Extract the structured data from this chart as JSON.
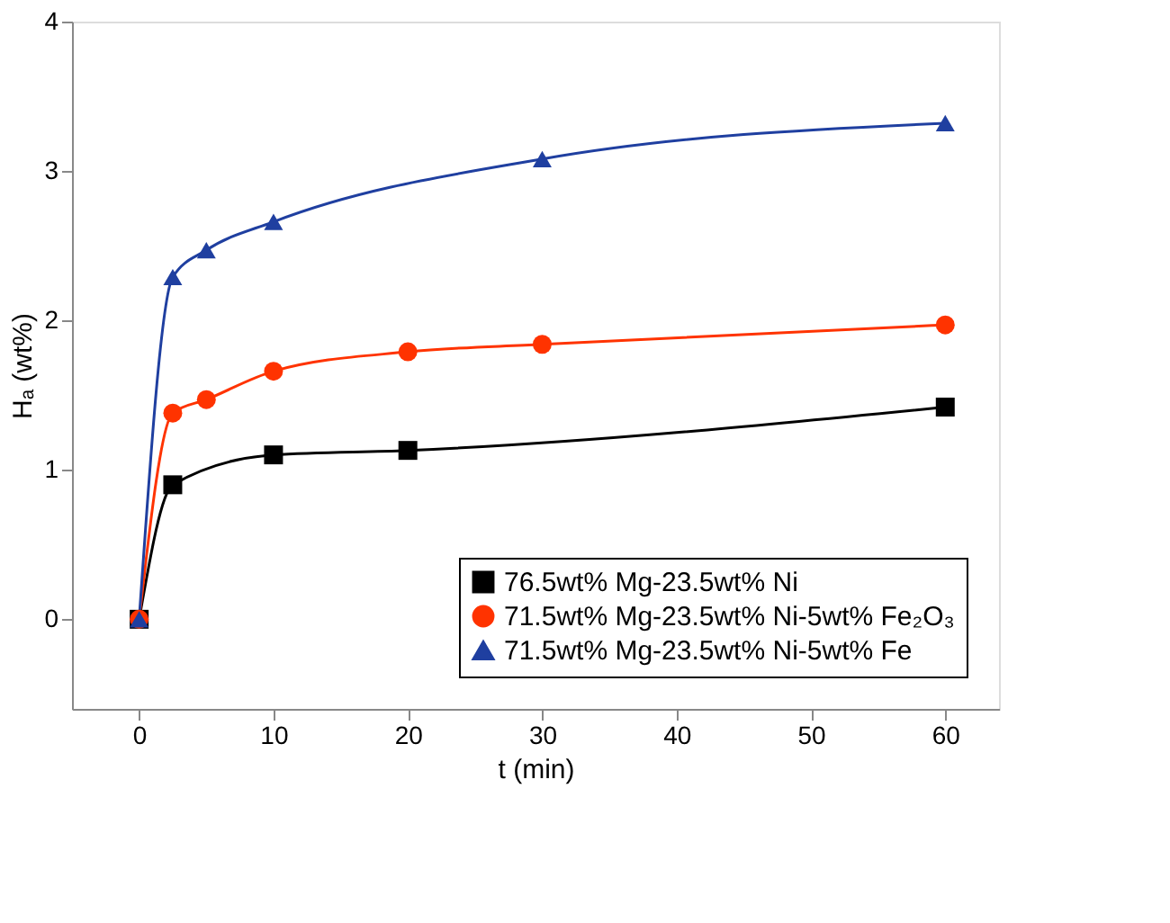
{
  "chart_data": {
    "type": "line",
    "xlabel": "t (min)",
    "ylabel": "Hₐ (wt%)",
    "xlim": [
      -5,
      64
    ],
    "ylim": [
      -0.6,
      4
    ],
    "xticks": [
      0,
      10,
      20,
      30,
      40,
      50,
      60
    ],
    "yticks": [
      0,
      1,
      2,
      3,
      4
    ],
    "grid": false,
    "legend": "bottom right",
    "line_style": "solid",
    "series": [
      {
        "name": "76.5wt% Mg-23.5wt% Ni",
        "color": "#000000",
        "marker": "square",
        "x": [
          0,
          2.5,
          10,
          20,
          60
        ],
        "values": [
          0,
          0.9,
          1.1,
          1.13,
          1.42
        ]
      },
      {
        "name": "71.5wt% Mg-23.5wt% Ni-5wt% Fe₂O₃",
        "color": "#ff3300",
        "marker": "circle",
        "x": [
          0,
          2.5,
          5,
          10,
          20,
          30,
          60
        ],
        "values": [
          0,
          1.38,
          1.47,
          1.66,
          1.79,
          1.84,
          1.97
        ]
      },
      {
        "name": "71.5wt% Mg-23.5wt% Ni-5wt% Fe",
        "color": "#1f3fa0",
        "marker": "triangle",
        "x": [
          0,
          2.5,
          5,
          10,
          30,
          60
        ],
        "values": [
          0,
          2.29,
          2.47,
          2.66,
          3.08,
          3.32
        ]
      }
    ]
  }
}
